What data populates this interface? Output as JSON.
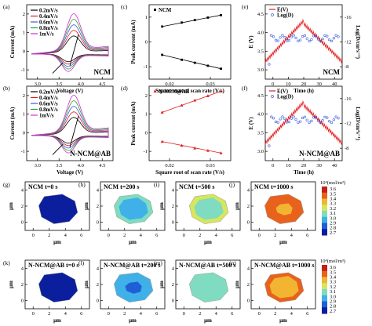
{
  "panels_top": [
    {
      "id": "a",
      "label": "(a)",
      "tag": "NCM",
      "xlabel": "Voltage (V)",
      "ylabel": "Current (mA)",
      "xticks": [
        "3.0",
        "3.5",
        "4.0",
        "4.5"
      ],
      "yticks": [
        "-1",
        "0",
        "1",
        "2"
      ],
      "legend": [
        "0.2mV/s",
        "0.4mV/s",
        "0.6mV/s",
        "0.8mV/s",
        "1mV/s"
      ]
    },
    {
      "id": "b",
      "label": "(b)",
      "tag": "N-NCM@AB",
      "xlabel": "Voltage (V)",
      "ylabel": "Current (mA)",
      "xticks": [
        "3.0",
        "3.5",
        "4.0",
        "4.5"
      ],
      "yticks": [
        "-1",
        "0",
        "1",
        "2"
      ],
      "legend": [
        "0.2mV/s",
        "0.4mV/s",
        "0.6mV/s",
        "0.8mV/s",
        "1mV/s"
      ]
    },
    {
      "id": "c",
      "label": "(c)",
      "legend": "NCM",
      "xlabel": "Square root of scan rate (V/s)",
      "ylabel": "Peak current (mA)",
      "xticks": [
        "0.02",
        "0.03"
      ],
      "yticks": [
        "-1",
        "0",
        "1"
      ]
    },
    {
      "id": "d",
      "label": "(d)",
      "legend": "N-NCM@AB",
      "xlabel": "Square root of scan rate (V/s)",
      "ylabel": "Peak current (mA)",
      "xticks": [
        "0.02",
        "0.03"
      ],
      "yticks": [
        "-1",
        "0",
        "1",
        "2"
      ]
    },
    {
      "id": "e",
      "label": "(e)",
      "tag": "NCM",
      "xlabel": "Time (h)",
      "ylabel": "E (V)",
      "y2label": "Log(D/cm²s⁻¹)",
      "xticks": [
        "0",
        "10",
        "20",
        "30",
        "40"
      ],
      "yticks": [
        "3.0",
        "3.5",
        "4.0",
        "4.5"
      ],
      "y2ticks": [
        "-8",
        "-12",
        "-16"
      ],
      "legend": [
        "E(V)",
        "Log(D)"
      ]
    },
    {
      "id": "f",
      "label": "(f)",
      "tag": "N-NCM@AB",
      "xlabel": "Time (h)",
      "ylabel": "E (V)",
      "y2label": "Log(D/cm²s⁻¹)",
      "xticks": [
        "0",
        "10",
        "20",
        "30",
        "40"
      ],
      "yticks": [
        "3.0",
        "3.5",
        "4.0",
        "4.5"
      ],
      "y2ticks": [
        "-8",
        "-12",
        "-16"
      ],
      "legend": [
        "E(V)",
        "Log(D)"
      ]
    }
  ],
  "heatmaps": [
    {
      "label": "(g)",
      "title": "NCM  t=0 s"
    },
    {
      "label": "(h)",
      "title": "NCM  t=200 s"
    },
    {
      "label": "(i)",
      "title": "NCM  t=500 s"
    },
    {
      "label": "(j)",
      "title": "NCM  t=1000 s"
    },
    {
      "label": "(k)",
      "title": "N-NCM@AB  t=0 s"
    },
    {
      "label": "(l)",
      "title": "N-NCM@AB  t=200 s"
    },
    {
      "label": "(m)",
      "title": "N-NCM@AB  t=500 s"
    },
    {
      "label": "(n)",
      "title": "N-NCM@AB  t=1000 s"
    }
  ],
  "heatmap_axes": {
    "xlabel": "μm",
    "ylabel": "μm",
    "xticks": [
      "0",
      "2",
      "4",
      "6"
    ],
    "yticks": [
      "0",
      "2",
      "4"
    ]
  },
  "colorbar": {
    "unit": "10⁴(mol/m³)",
    "ticks": [
      "3.6",
      "3.5",
      "3.4",
      "3.3",
      "3.2",
      "3.1",
      "3.0",
      "2.9",
      "2.8",
      "2.7"
    ]
  },
  "colors": {
    "red": "#e31a1c",
    "blue": "#3b5bdb",
    "green": "#2ca02c",
    "magenta": "#d62ad6",
    "black": "#000000"
  },
  "chart_data": [
    {
      "type": "line",
      "panel": "c",
      "title": "",
      "xlabel": "Square root of scan rate (V/s)",
      "ylabel": "Peak current (mA)",
      "series": [
        {
          "name": "NCM",
          "x": [
            0.014,
            0.02,
            0.024,
            0.028,
            0.032
          ],
          "values": [
            0.62,
            0.78,
            0.88,
            0.98,
            1.08
          ]
        },
        {
          "name": "",
          "x": [
            0.014,
            0.02,
            0.024,
            0.028,
            0.032
          ],
          "values": [
            -0.52,
            -0.72,
            -0.84,
            -0.96,
            -1.08
          ]
        }
      ],
      "xlim": [
        0.01,
        0.035
      ],
      "ylim": [
        -1.5,
        1.5
      ]
    },
    {
      "type": "line",
      "panel": "d",
      "title": "",
      "xlabel": "Square root of scan rate (V/s)",
      "ylabel": "Peak current (mA)",
      "series": [
        {
          "name": "N-NCM@AB",
          "x": [
            0.014,
            0.02,
            0.024,
            0.028,
            0.032
          ],
          "values": [
            0.9,
            1.25,
            1.5,
            1.72,
            1.95
          ]
        },
        {
          "name": "",
          "x": [
            0.014,
            0.02,
            0.024,
            0.028,
            0.032
          ],
          "values": [
            -0.55,
            -0.75,
            -0.88,
            -1.0,
            -1.12
          ]
        }
      ],
      "xlim": [
        0.01,
        0.035
      ],
      "ylim": [
        -1.5,
        2.2
      ]
    },
    {
      "type": "heatmap",
      "panel": "g-n",
      "unit": "10⁴(mol/m³)",
      "range": [
        2.7,
        3.6
      ],
      "mean_concentration": {
        "NCM": [
          2.72,
          3.05,
          3.2,
          3.5
        ],
        "N-NCM@AB": [
          2.72,
          3.0,
          3.15,
          3.45
        ]
      },
      "times_s": [
        0,
        200,
        500,
        1000
      ]
    }
  ]
}
